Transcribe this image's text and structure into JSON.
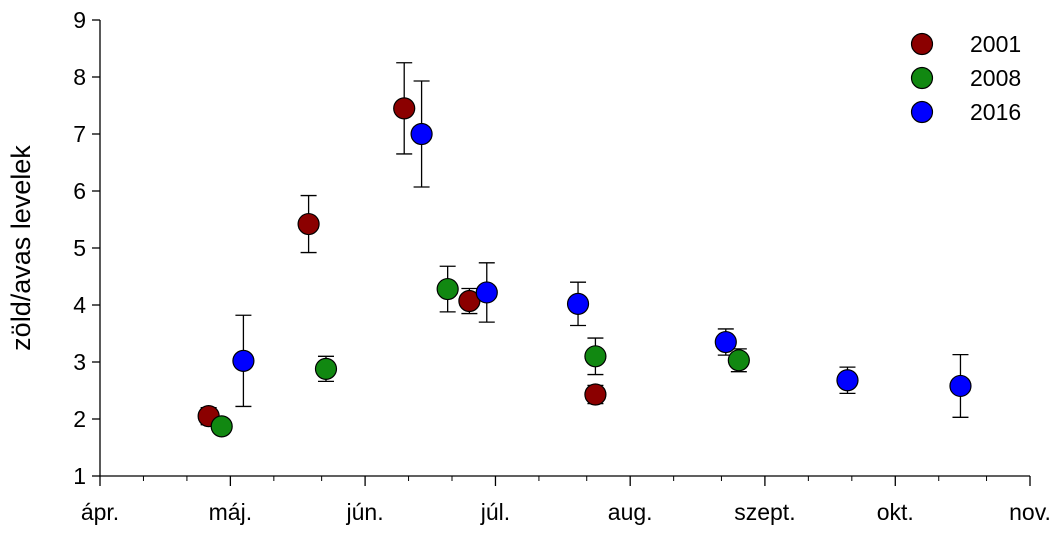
{
  "chart_data": {
    "type": "scatter",
    "title": "",
    "xlabel": "",
    "ylabel": "zöld/avas levelek",
    "ylim": [
      1,
      9
    ],
    "yticks": [
      1,
      2,
      3,
      4,
      5,
      6,
      7,
      8,
      9
    ],
    "xlim": [
      "04-01",
      "11-01"
    ],
    "xtick_labels": [
      "ápr.",
      "máj.",
      "jún.",
      "júl.",
      "aug.",
      "szept.",
      "okt.",
      "nov."
    ],
    "xtick_dates": [
      "04-01",
      "05-01",
      "06-01",
      "07-01",
      "08-01",
      "09-01",
      "10-01",
      "11-01"
    ],
    "grid": false,
    "legend": {
      "position": "top-right"
    },
    "error_bars": true,
    "series": [
      {
        "name": "2001",
        "color": "#8b0000",
        "points": [
          {
            "x": "04-26",
            "y": 2.05,
            "err": 0.15
          },
          {
            "x": "05-19",
            "y": 5.42,
            "err": 0.5
          },
          {
            "x": "06-10",
            "y": 7.45,
            "err": 0.8
          },
          {
            "x": "06-25",
            "y": 4.07,
            "err": 0.22
          },
          {
            "x": "07-24",
            "y": 2.43,
            "err": 0.16
          }
        ]
      },
      {
        "name": "2008",
        "color": "#118811",
        "points": [
          {
            "x": "04-29",
            "y": 1.87,
            "err": 0.07
          },
          {
            "x": "05-23",
            "y": 2.88,
            "err": 0.22
          },
          {
            "x": "06-20",
            "y": 4.28,
            "err": 0.4
          },
          {
            "x": "07-24",
            "y": 3.1,
            "err": 0.32
          },
          {
            "x": "08-26",
            "y": 3.03,
            "err": 0.2
          }
        ]
      },
      {
        "name": "2016",
        "color": "#0000ff",
        "points": [
          {
            "x": "05-04",
            "y": 3.02,
            "err": 0.8
          },
          {
            "x": "06-14",
            "y": 7.0,
            "err": 0.93
          },
          {
            "x": "06-29",
            "y": 4.22,
            "err": 0.52
          },
          {
            "x": "07-20",
            "y": 4.02,
            "err": 0.38
          },
          {
            "x": "08-23",
            "y": 3.35,
            "err": 0.23
          },
          {
            "x": "09-20",
            "y": 2.68,
            "err": 0.23
          },
          {
            "x": "10-16",
            "y": 2.58,
            "err": 0.55
          }
        ]
      }
    ]
  }
}
